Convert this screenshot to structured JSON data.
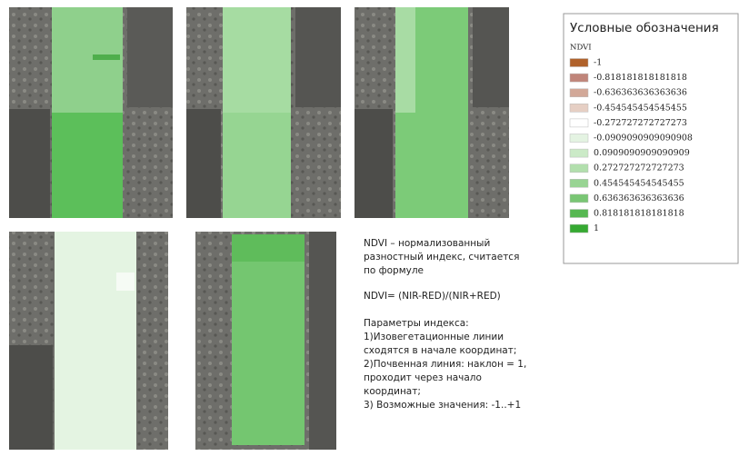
{
  "legend": {
    "title": "Условные обозначения",
    "subtitle": "NDVI",
    "items": [
      {
        "label": "-1",
        "color": "#b0612a"
      },
      {
        "label": "-0.818181818181818",
        "color": "#c0857a"
      },
      {
        "label": "-0.636363636363636",
        "color": "#d2a898"
      },
      {
        "label": "-0.454545454545455",
        "color": "#e6cfc4"
      },
      {
        "label": "-0.272727272727273",
        "color": "#ffffff"
      },
      {
        "label": "-0.0909090909090908",
        "color": "#e4f3e2"
      },
      {
        "label": "0.0909090909090909",
        "color": "#cbeac7"
      },
      {
        "label": "0.272727272727273",
        "color": "#b2dfad"
      },
      {
        "label": "0.454545454545455",
        "color": "#98d493"
      },
      {
        "label": "0.636363636363636",
        "color": "#79c674"
      },
      {
        "label": "0.818181818181818",
        "color": "#56b851"
      },
      {
        "label": "1",
        "color": "#36a932"
      }
    ]
  },
  "description": {
    "definition": [
      "NDVI – нормализованный",
      "разностный индекс, считается",
      "по формуле"
    ],
    "formula": "NDVI= (NIR-RED)/(NIR+RED)",
    "params_title": "Параметры индекса:",
    "params": [
      "1)Изовегетационные линии",
      "сходятся в начале координат;",
      "2)Почвенная линия: наклон = 1,",
      "проходит через начало",
      "координат;",
      "3) Возможные значения: -1..+1"
    ]
  }
}
